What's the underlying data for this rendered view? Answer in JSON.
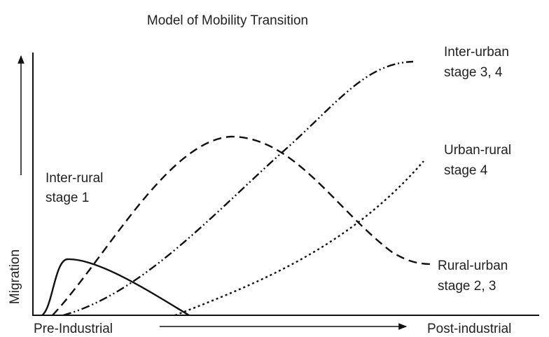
{
  "title": "Model of Mobility Transition",
  "y_axis": {
    "label": "Migration"
  },
  "x_axis": {
    "start": "Pre-Industrial",
    "end": "Post-industrial"
  },
  "curves": [
    {
      "line1": "Inter-rural",
      "line2": "stage 1"
    },
    {
      "line1": "Rural-urban",
      "line2": "stage 2, 3"
    },
    {
      "line1": "Inter-urban",
      "line2": "stage 3, 4"
    },
    {
      "line1": "Urban-rural",
      "line2": "stage 4"
    }
  ]
}
